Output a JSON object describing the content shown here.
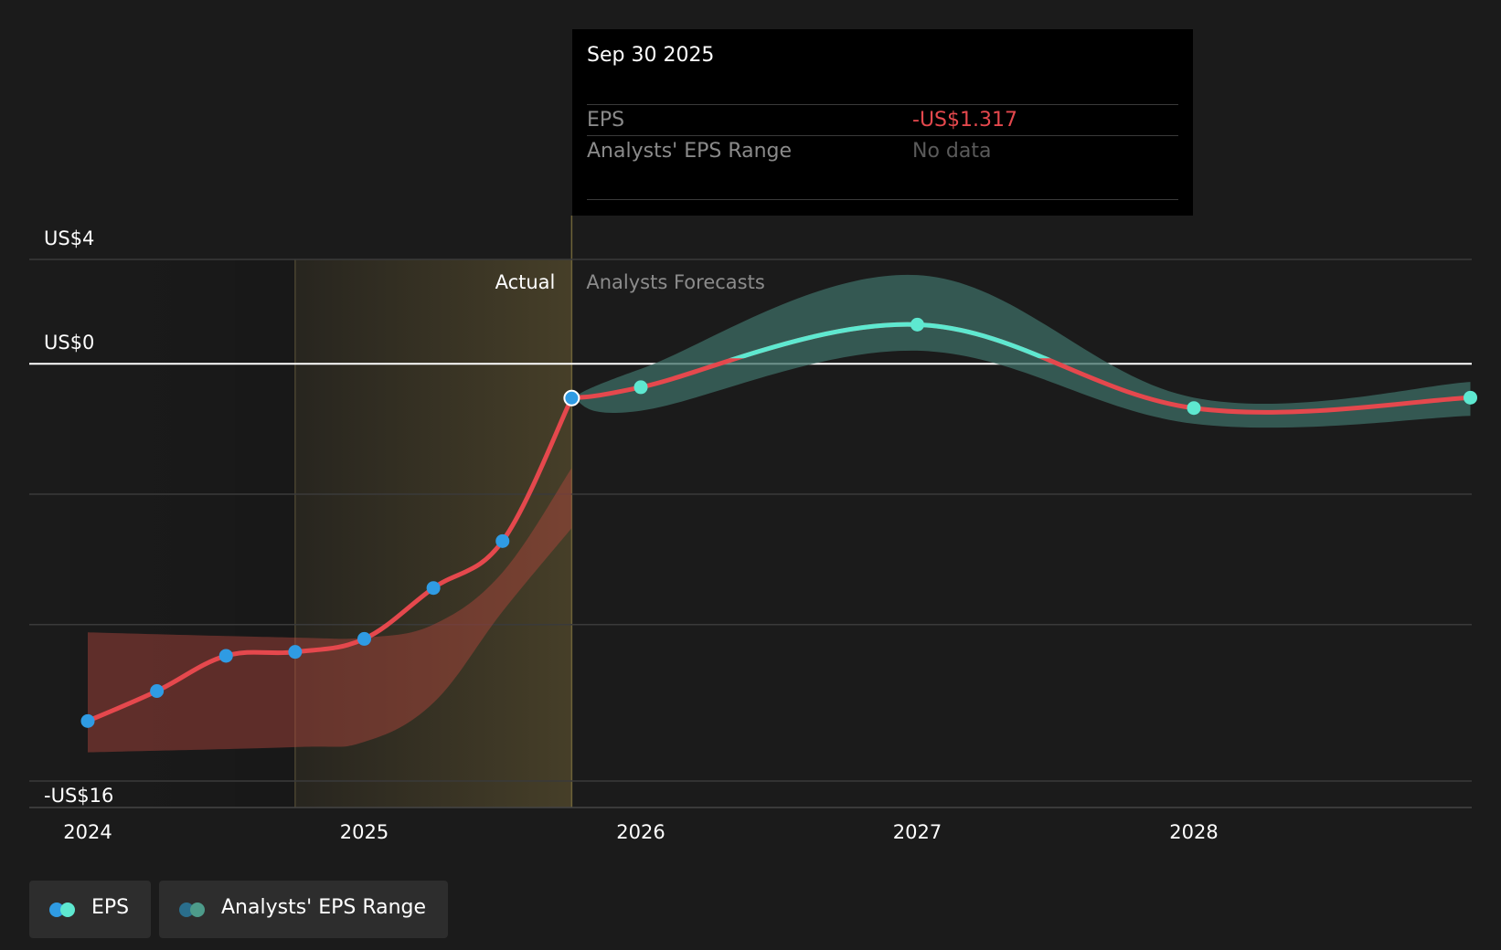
{
  "tooltip": {
    "date": "Sep 30 2025",
    "rows": [
      {
        "label": "EPS",
        "value": "-US$1.317",
        "color": "#e5484d"
      },
      {
        "label": "Analysts' EPS Range",
        "value": "No data",
        "color": "#5a5a5a"
      }
    ]
  },
  "legend": [
    {
      "label": "EPS",
      "colors": [
        "#2f9be3",
        "#5ee8d0"
      ]
    },
    {
      "label": "Analysts' EPS Range",
      "colors": [
        "#2a6e8c",
        "#4d9b8a"
      ]
    }
  ],
  "colors": {
    "background": "#1b1b1b",
    "eps_actual": "#e5484d",
    "eps_forecast_up": "#5ee8d0",
    "actual_point": "#2f9be3",
    "forecast_point": "#5ee8d0",
    "range_actual": "#b4463d",
    "range_forecast": "#3d6e66",
    "grid": "#3a3a3a",
    "zero_line": "#ffffff",
    "actual_band": "#b59a4a"
  },
  "chart_data": {
    "type": "line",
    "y_axis": {
      "min": -16,
      "max": 4,
      "tick_labels": [
        "US$4",
        "US$0",
        "-US$16"
      ],
      "tick_values": [
        4,
        0,
        -16
      ],
      "gridlines": [
        4,
        0,
        -5,
        -10,
        -16
      ]
    },
    "x_axis": {
      "min": 2023.79,
      "max": 2028.95,
      "tick_labels": [
        "2024",
        "2025",
        "2026",
        "2027",
        "2028"
      ],
      "tick_values": [
        2024,
        2025,
        2026,
        2027,
        2028
      ]
    },
    "section_labels": {
      "actual": "Actual",
      "forecast": "Analysts Forecasts"
    },
    "actual_band": {
      "start": 2024.75,
      "end": 2025.75
    },
    "series": [
      {
        "name": "EPS",
        "actual": [
          {
            "x": 2024.0,
            "y": -13.7
          },
          {
            "x": 2024.25,
            "y": -12.55
          },
          {
            "x": 2024.5,
            "y": -11.2
          },
          {
            "x": 2024.75,
            "y": -11.05
          },
          {
            "x": 2025.0,
            "y": -10.55
          },
          {
            "x": 2025.25,
            "y": -8.6
          },
          {
            "x": 2025.5,
            "y": -6.8
          },
          {
            "x": 2025.75,
            "y": -1.317
          }
        ],
        "forecast": [
          {
            "x": 2025.75,
            "y": -1.317
          },
          {
            "x": 2026.0,
            "y": -0.9
          },
          {
            "x": 2027.0,
            "y": 1.5
          },
          {
            "x": 2028.0,
            "y": -1.7
          },
          {
            "x": 2029.0,
            "y": -1.3
          }
        ]
      }
    ],
    "range_actual": {
      "x": [
        2024.0,
        2024.75,
        2025.0,
        2025.25,
        2025.5,
        2025.75
      ],
      "high": [
        -10.3,
        -10.5,
        -10.5,
        -10.0,
        -8.0,
        -4.0
      ],
      "low": [
        -14.9,
        -14.7,
        -14.5,
        -13.0,
        -9.5,
        -6.3
      ]
    },
    "range_forecast": {
      "x": [
        2025.75,
        2026.0,
        2027.0,
        2028.0,
        2029.0
      ],
      "high": [
        -1.3,
        -0.2,
        3.4,
        -1.3,
        -0.7
      ],
      "low": [
        -1.317,
        -1.8,
        0.5,
        -2.3,
        -2.0
      ]
    },
    "highlight": {
      "x": 2025.75,
      "y": -1.317,
      "label": "Sep 30 2025"
    }
  }
}
